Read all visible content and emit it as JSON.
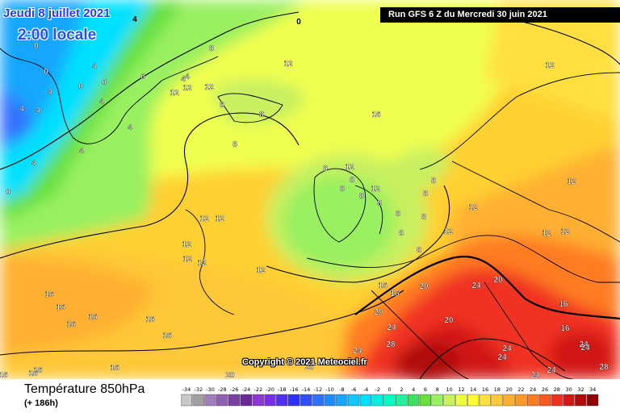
{
  "header": {
    "date_line": "Jeudi 8 juillet 2021",
    "time_line": "2:00 locale",
    "run_info": "Run GFS 6 Z du Mercredi 30 juin 2021"
  },
  "copyright": "Copyright © 2021 Meteociel.fr",
  "footer": {
    "variable": "Température 850hPa",
    "forecast_hour": "(+ 186h)"
  },
  "legend": {
    "ticks": [
      "-34",
      "-32",
      "-30",
      "-28",
      "-26",
      "-24",
      "-22",
      "-20",
      "-18",
      "-16",
      "-14",
      "-12",
      "-10",
      "-8",
      "-6",
      "-4",
      "-2",
      "0",
      "2",
      "4",
      "6",
      "8",
      "10",
      "12",
      "14",
      "16",
      "18",
      "20",
      "22",
      "24",
      "26",
      "28",
      "30",
      "32",
      "34"
    ],
    "colors": [
      "#c8c8c8",
      "#a0a0a0",
      "#a07dbd",
      "#9060b0",
      "#7a3fa4",
      "#6a2a98",
      "#8d36d6",
      "#7a2fe6",
      "#5030f0",
      "#3030ff",
      "#3050ff",
      "#3070ff",
      "#1c8cff",
      "#18a6ff",
      "#10c8ff",
      "#00e0ff",
      "#00f0e0",
      "#00ffc0",
      "#20f0a0",
      "#40e060",
      "#66e040",
      "#99f060",
      "#c8f060",
      "#eeff40",
      "#ffff30",
      "#ffe040",
      "#ffc838",
      "#ffb030",
      "#ff9828",
      "#ff7c20",
      "#ff5820",
      "#f03020",
      "#d01818",
      "#b00c0c",
      "#900404"
    ]
  },
  "map_labels": [
    {
      "text": "0",
      "tone": "dark"
    },
    {
      "text": "4",
      "tone": "dark"
    },
    {
      "text": "4",
      "tone": "light"
    },
    {
      "text": "4",
      "tone": "light"
    },
    {
      "text": "0",
      "tone": "light"
    },
    {
      "text": "0",
      "tone": "light"
    },
    {
      "text": "4",
      "tone": "light"
    },
    {
      "text": "4",
      "tone": "light"
    },
    {
      "text": "0",
      "tone": "light"
    },
    {
      "text": "0",
      "tone": "light"
    },
    {
      "text": "4",
      "tone": "light"
    },
    {
      "text": "4",
      "tone": "light"
    },
    {
      "text": "4",
      "tone": "light"
    },
    {
      "text": "0",
      "tone": "light"
    },
    {
      "text": "4",
      "tone": "light"
    },
    {
      "text": "0",
      "tone": "light"
    },
    {
      "text": "4",
      "tone": "light"
    },
    {
      "text": "4",
      "tone": "light"
    },
    {
      "text": "8",
      "tone": "light"
    },
    {
      "text": "8",
      "tone": "light"
    },
    {
      "text": "12",
      "tone": "light"
    },
    {
      "text": "12",
      "tone": "light"
    },
    {
      "text": "12",
      "tone": "light"
    },
    {
      "text": "12",
      "tone": "light"
    },
    {
      "text": "8",
      "tone": "light"
    },
    {
      "text": "8",
      "tone": "light"
    },
    {
      "text": "8",
      "tone": "light"
    },
    {
      "text": "12",
      "tone": "light"
    },
    {
      "text": "12",
      "tone": "light"
    },
    {
      "text": "16",
      "tone": "light"
    },
    {
      "text": "8",
      "tone": "light"
    },
    {
      "text": "8",
      "tone": "light"
    },
    {
      "text": "8",
      "tone": "light"
    },
    {
      "text": "8",
      "tone": "light"
    },
    {
      "text": "8",
      "tone": "light"
    },
    {
      "text": "8",
      "tone": "light"
    },
    {
      "text": "8",
      "tone": "light"
    },
    {
      "text": "8",
      "tone": "light"
    },
    {
      "text": "8",
      "tone": "light"
    },
    {
      "text": "8",
      "tone": "light"
    },
    {
      "text": "12",
      "tone": "light"
    },
    {
      "text": "12",
      "tone": "light"
    },
    {
      "text": "12",
      "tone": "light"
    },
    {
      "text": "12",
      "tone": "light"
    },
    {
      "text": "12",
      "tone": "light"
    },
    {
      "text": "12",
      "tone": "light"
    },
    {
      "text": "12",
      "tone": "light"
    },
    {
      "text": "12",
      "tone": "light"
    },
    {
      "text": "12",
      "tone": "light"
    },
    {
      "text": "12",
      "tone": "light"
    },
    {
      "text": "12",
      "tone": "light"
    },
    {
      "text": "12",
      "tone": "light"
    },
    {
      "text": "16",
      "tone": "light"
    },
    {
      "text": "16",
      "tone": "light"
    },
    {
      "text": "16",
      "tone": "light"
    },
    {
      "text": "16",
      "tone": "light"
    },
    {
      "text": "16",
      "tone": "light"
    },
    {
      "text": "16",
      "tone": "light"
    },
    {
      "text": "16",
      "tone": "light"
    },
    {
      "text": "16",
      "tone": "light"
    },
    {
      "text": "16",
      "tone": "light"
    },
    {
      "text": "16",
      "tone": "light"
    },
    {
      "text": "16",
      "tone": "light"
    },
    {
      "text": "16",
      "tone": "light"
    },
    {
      "text": "16",
      "tone": "light"
    },
    {
      "text": "20",
      "tone": "light"
    },
    {
      "text": "20",
      "tone": "light"
    },
    {
      "text": "20",
      "tone": "light"
    },
    {
      "text": "24",
      "tone": "light"
    },
    {
      "text": "24",
      "tone": "light"
    },
    {
      "text": "24",
      "tone": "light"
    },
    {
      "text": "24",
      "tone": "light"
    },
    {
      "text": "28",
      "tone": "light"
    },
    {
      "text": "24",
      "tone": "light"
    },
    {
      "text": "24",
      "tone": "light"
    },
    {
      "text": "24",
      "tone": "light"
    },
    {
      "text": "24",
      "tone": "light"
    },
    {
      "text": "24",
      "tone": "light"
    },
    {
      "text": "28",
      "tone": "light"
    },
    {
      "text": "20",
      "tone": "light"
    },
    {
      "text": "28",
      "tone": "light"
    },
    {
      "text": "20",
      "tone": "light"
    },
    {
      "text": "16",
      "tone": "light"
    }
  ]
}
